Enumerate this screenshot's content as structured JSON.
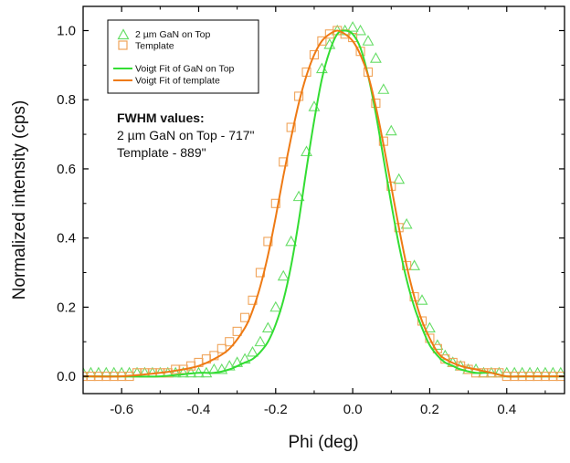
{
  "colors": {
    "gan": "#33dd33",
    "gan_marker": "#66dd66",
    "template": "#ee7a14",
    "template_marker": "#f0a45a",
    "axis": "#000000"
  },
  "chart_data": {
    "type": "line",
    "xlabel": "Phi (deg)",
    "ylabel": "Normalized intensity (cps)",
    "xlim": [
      -0.7,
      0.55
    ],
    "ylim": [
      -0.05,
      1.07
    ],
    "xticks": [
      "-0.6",
      "-0.4",
      "-0.2",
      "0.0",
      "0.2",
      "0.4"
    ],
    "xtick_values": [
      -0.6,
      -0.4,
      -0.2,
      0.0,
      0.2,
      0.4
    ],
    "yticks": [
      "0.0",
      "0.2",
      "0.4",
      "0.6",
      "0.8",
      "1.0"
    ],
    "ytick_values": [
      0.0,
      0.2,
      0.4,
      0.6,
      0.8,
      1.0
    ],
    "grid": false,
    "legend_position": "top-left",
    "legend": [
      {
        "label": "2 µm GaN on Top",
        "marker": "triangle-open",
        "color": "gan_marker"
      },
      {
        "label": "Template",
        "marker": "square-open",
        "color": "template_marker"
      },
      {
        "label": "Voigt Fit of GaN on Top",
        "marker": "line",
        "color": "gan"
      },
      {
        "label": "Voigt Fit of template",
        "marker": "line",
        "color": "template"
      }
    ],
    "annotation": {
      "heading": "FWHM values:",
      "lines": [
        "2 µm GaN on Top - 717\"",
        "Template - 889\""
      ]
    },
    "series": [
      {
        "name": "2 µm GaN on Top",
        "kind": "markers",
        "marker": "triangle-open",
        "x": [
          -0.7,
          -0.68,
          -0.66,
          -0.64,
          -0.62,
          -0.6,
          -0.58,
          -0.56,
          -0.54,
          -0.52,
          -0.5,
          -0.48,
          -0.46,
          -0.44,
          -0.42,
          -0.4,
          -0.38,
          -0.36,
          -0.34,
          -0.32,
          -0.3,
          -0.28,
          -0.26,
          -0.24,
          -0.22,
          -0.2,
          -0.18,
          -0.16,
          -0.14,
          -0.12,
          -0.1,
          -0.08,
          -0.06,
          -0.04,
          -0.02,
          0.0,
          0.02,
          0.04,
          0.06,
          0.08,
          0.1,
          0.12,
          0.14,
          0.16,
          0.18,
          0.2,
          0.22,
          0.24,
          0.26,
          0.28,
          0.3,
          0.32,
          0.34,
          0.36,
          0.38,
          0.4,
          0.42,
          0.44,
          0.46,
          0.48,
          0.5,
          0.52,
          0.54
        ],
        "y": [
          0.01,
          0.01,
          0.01,
          0.01,
          0.01,
          0.01,
          0.01,
          0.01,
          0.01,
          0.01,
          0.01,
          0.01,
          0.01,
          0.01,
          0.01,
          0.01,
          0.01,
          0.02,
          0.02,
          0.03,
          0.04,
          0.05,
          0.07,
          0.1,
          0.14,
          0.2,
          0.29,
          0.39,
          0.52,
          0.65,
          0.78,
          0.89,
          0.96,
          1.0,
          1.0,
          1.01,
          1.0,
          0.97,
          0.92,
          0.83,
          0.71,
          0.57,
          0.44,
          0.32,
          0.22,
          0.14,
          0.09,
          0.06,
          0.04,
          0.03,
          0.02,
          0.02,
          0.01,
          0.01,
          0.01,
          0.01,
          0.01,
          0.01,
          0.01,
          0.01,
          0.01,
          0.01,
          0.01
        ]
      },
      {
        "name": "Template",
        "kind": "markers",
        "marker": "square-open",
        "x": [
          -0.7,
          -0.68,
          -0.66,
          -0.64,
          -0.62,
          -0.6,
          -0.58,
          -0.56,
          -0.54,
          -0.52,
          -0.5,
          -0.48,
          -0.46,
          -0.44,
          -0.42,
          -0.4,
          -0.38,
          -0.36,
          -0.34,
          -0.32,
          -0.3,
          -0.28,
          -0.26,
          -0.24,
          -0.22,
          -0.2,
          -0.18,
          -0.16,
          -0.14,
          -0.12,
          -0.1,
          -0.08,
          -0.06,
          -0.04,
          -0.02,
          0.0,
          0.02,
          0.04,
          0.06,
          0.08,
          0.1,
          0.12,
          0.14,
          0.16,
          0.18,
          0.2,
          0.22,
          0.24,
          0.26,
          0.28,
          0.3,
          0.32,
          0.34,
          0.36,
          0.38,
          0.4,
          0.42,
          0.44,
          0.46,
          0.48,
          0.5,
          0.52,
          0.54
        ],
        "y": [
          0.0,
          0.0,
          0.0,
          0.0,
          0.0,
          0.0,
          0.0,
          0.01,
          0.01,
          0.01,
          0.01,
          0.01,
          0.02,
          0.02,
          0.03,
          0.04,
          0.05,
          0.06,
          0.08,
          0.1,
          0.13,
          0.17,
          0.22,
          0.3,
          0.39,
          0.5,
          0.62,
          0.72,
          0.81,
          0.88,
          0.93,
          0.97,
          0.99,
          1.0,
          0.99,
          0.98,
          0.94,
          0.88,
          0.79,
          0.68,
          0.55,
          0.43,
          0.32,
          0.23,
          0.16,
          0.11,
          0.08,
          0.05,
          0.04,
          0.03,
          0.02,
          0.01,
          0.01,
          0.01,
          0.01,
          0.0,
          0.0,
          0.0,
          0.0,
          0.0,
          0.0,
          0.0,
          0.0
        ]
      },
      {
        "name": "Voigt Fit of GaN on Top",
        "kind": "line",
        "x": [
          -0.7,
          -0.6,
          -0.5,
          -0.4,
          -0.36,
          -0.32,
          -0.28,
          -0.26,
          -0.24,
          -0.22,
          -0.2,
          -0.18,
          -0.16,
          -0.14,
          -0.12,
          -0.1,
          -0.08,
          -0.06,
          -0.04,
          -0.02,
          0.0,
          0.02,
          0.04,
          0.06,
          0.08,
          0.1,
          0.12,
          0.14,
          0.16,
          0.18,
          0.2,
          0.22,
          0.24,
          0.26,
          0.28,
          0.32,
          0.36,
          0.4,
          0.45,
          0.55
        ],
        "y": [
          0.0,
          0.0,
          0.0,
          0.01,
          0.01,
          0.02,
          0.04,
          0.05,
          0.07,
          0.1,
          0.15,
          0.22,
          0.32,
          0.45,
          0.6,
          0.74,
          0.86,
          0.94,
          0.99,
          1.0,
          0.99,
          0.95,
          0.87,
          0.76,
          0.63,
          0.5,
          0.38,
          0.28,
          0.2,
          0.14,
          0.09,
          0.06,
          0.04,
          0.03,
          0.02,
          0.01,
          0.01,
          0.0,
          0.0,
          0.0
        ]
      },
      {
        "name": "Voigt Fit of template",
        "kind": "line",
        "x": [
          -0.7,
          -0.6,
          -0.5,
          -0.44,
          -0.4,
          -0.36,
          -0.32,
          -0.28,
          -0.26,
          -0.24,
          -0.22,
          -0.2,
          -0.18,
          -0.16,
          -0.14,
          -0.12,
          -0.1,
          -0.08,
          -0.06,
          -0.04,
          -0.02,
          0.0,
          0.02,
          0.04,
          0.06,
          0.08,
          0.1,
          0.12,
          0.14,
          0.16,
          0.18,
          0.2,
          0.22,
          0.24,
          0.28,
          0.32,
          0.36,
          0.4,
          0.45,
          0.55
        ],
        "y": [
          0.0,
          0.0,
          0.01,
          0.02,
          0.03,
          0.05,
          0.08,
          0.14,
          0.19,
          0.26,
          0.35,
          0.46,
          0.58,
          0.69,
          0.79,
          0.87,
          0.93,
          0.97,
          0.99,
          1.0,
          0.99,
          0.97,
          0.93,
          0.87,
          0.78,
          0.67,
          0.55,
          0.43,
          0.32,
          0.23,
          0.16,
          0.11,
          0.07,
          0.05,
          0.03,
          0.02,
          0.01,
          0.0,
          0.0,
          0.0
        ]
      }
    ]
  }
}
